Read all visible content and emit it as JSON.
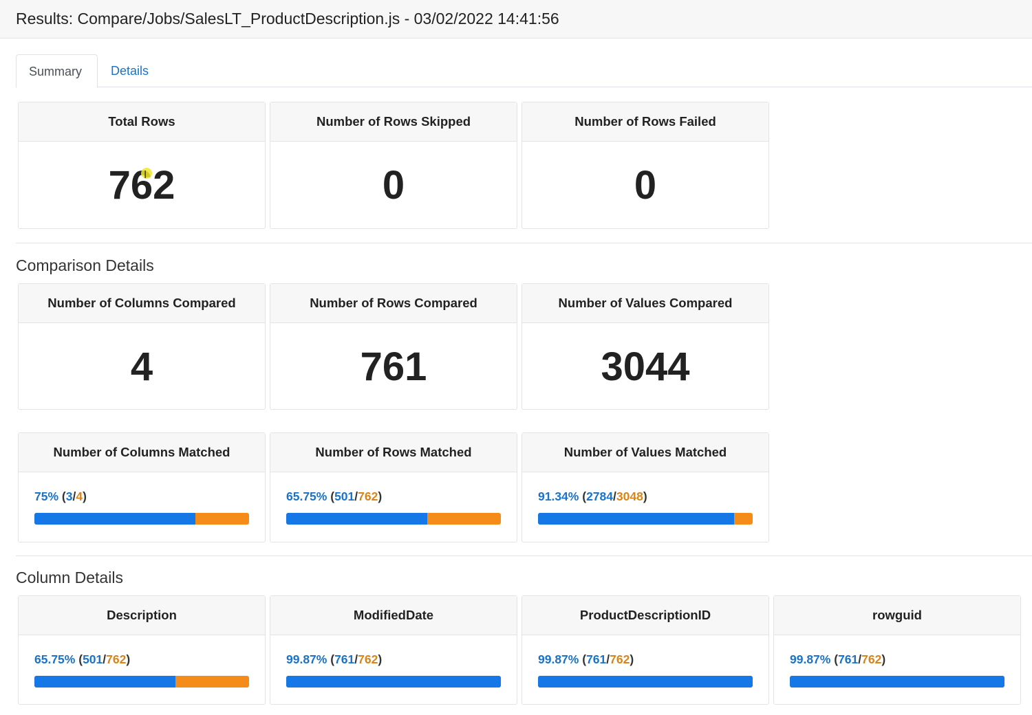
{
  "header": {
    "title": "Results: Compare/Jobs/SalesLT_ProductDescription.js - 03/02/2022 14:41:56"
  },
  "tabs": [
    {
      "label": "Summary",
      "active": true
    },
    {
      "label": "Details",
      "active": false
    }
  ],
  "summary": {
    "total_rows": {
      "label": "Total Rows",
      "value": "762"
    },
    "rows_skipped": {
      "label": "Number of Rows Skipped",
      "value": "0"
    },
    "rows_failed": {
      "label": "Number of Rows Failed",
      "value": "0"
    }
  },
  "comparison": {
    "title": "Comparison Details",
    "columns_compared": {
      "label": "Number of Columns Compared",
      "value": "4"
    },
    "rows_compared": {
      "label": "Number of Rows Compared",
      "value": "761"
    },
    "values_compared": {
      "label": "Number of Values Compared",
      "value": "3044"
    },
    "columns_matched": {
      "label": "Number of Columns Matched",
      "pct": "75%",
      "matched": "3",
      "total": "4",
      "fraction": 0.75
    },
    "rows_matched": {
      "label": "Number of Rows Matched",
      "pct": "65.75%",
      "matched": "501",
      "total": "762",
      "fraction": 0.6575
    },
    "values_matched": {
      "label": "Number of Values Matched",
      "pct": "91.34%",
      "matched": "2784",
      "total": "3048",
      "fraction": 0.9134
    }
  },
  "columns": {
    "title": "Column Details",
    "items": [
      {
        "name": "Description",
        "pct": "65.75%",
        "matched": "501",
        "total": "762",
        "fraction": 0.6575
      },
      {
        "name": "ModifiedDate",
        "pct": "99.87%",
        "matched": "761",
        "total": "762",
        "fraction": 0.9987
      },
      {
        "name": "ProductDescriptionID",
        "pct": "99.87%",
        "matched": "761",
        "total": "762",
        "fraction": 0.9987
      },
      {
        "name": "rowguid",
        "pct": "99.87%",
        "matched": "761",
        "total": "762",
        "fraction": 0.9987
      }
    ]
  },
  "colors": {
    "matched": "#1677e6",
    "unmatched": "#f58c1a",
    "link": "#1a73c8"
  },
  "punct": {
    "open": " (",
    "slash": "/",
    "close": ")"
  }
}
